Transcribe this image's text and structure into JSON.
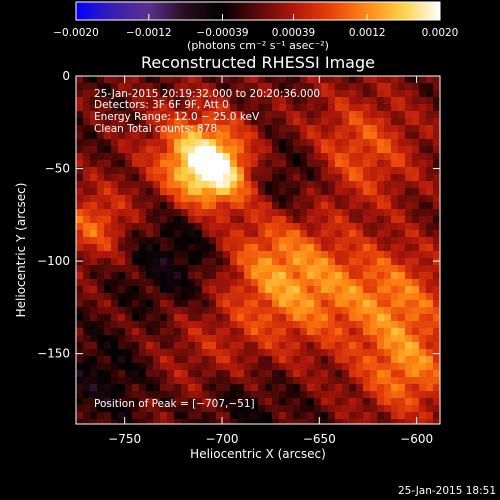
{
  "chart_data": {
    "type": "heatmap",
    "title": "Reconstructed RHESSI Image",
    "xlabel": "Heliocentric X (arcsec)",
    "ylabel": "Heliocentric Y (arcsec)",
    "xlim": [
      -775,
      -588
    ],
    "ylim": [
      -188,
      0
    ],
    "x_ticks": [
      {
        "value": -750,
        "label": "−750"
      },
      {
        "value": -700,
        "label": "−700"
      },
      {
        "value": -650,
        "label": "−650"
      },
      {
        "value": -600,
        "label": "−600"
      }
    ],
    "y_ticks": [
      {
        "value": 0,
        "label": "0"
      },
      {
        "value": -50,
        "label": "−50"
      },
      {
        "value": -100,
        "label": "−100"
      },
      {
        "value": -150,
        "label": "−150"
      }
    ],
    "colorbar": {
      "range": [
        -0.002,
        0.002
      ],
      "ticks": [
        {
          "value": -0.002,
          "label": "−0.0020"
        },
        {
          "value": -0.0012,
          "label": "−0.0012"
        },
        {
          "value": -0.00039,
          "label": "−0.00039"
        },
        {
          "value": 0.00039,
          "label": "0.00039"
        },
        {
          "value": 0.0012,
          "label": "0.0012"
        },
        {
          "value": 0.002,
          "label": "0.0020"
        }
      ],
      "unit_label": "(photons cm⁻² s⁻¹ asec⁻²)"
    },
    "annotations": [
      "25-Jan-2015 20:19:32.000 to 20:20:36.000",
      "Detectors: 3F 6F 9F, Att 0",
      "Energy Range: 12.0 − 25.0 keV",
      "Clean    Total counts: 878."
    ],
    "peak_label": "Position of Peak = [−707,−51]",
    "peak": {
      "x": -707,
      "y": -51
    },
    "colormap": [
      "#0000ff",
      "#3a1fb0",
      "#5b2f8e",
      "#2a0c1e",
      "#000000",
      "#5a0a08",
      "#b0180a",
      "#e8420a",
      "#ff8a14",
      "#ffd24a",
      "#ffffff"
    ]
  },
  "footer_timestamp": "25-Jan-2015 18:51"
}
